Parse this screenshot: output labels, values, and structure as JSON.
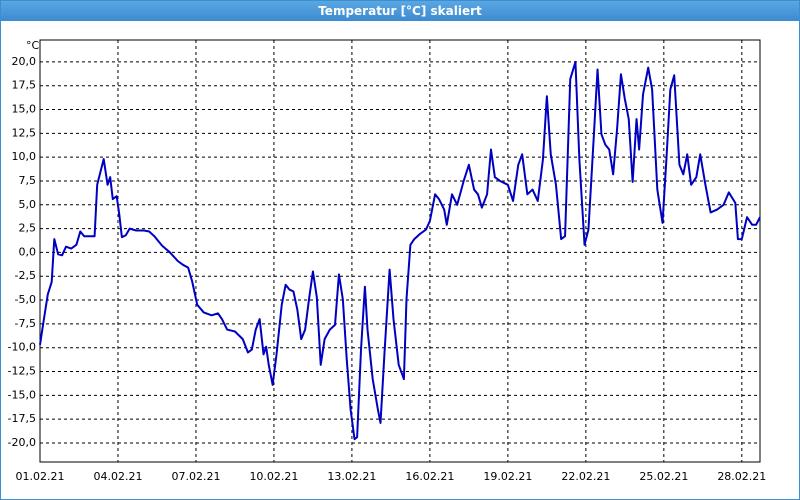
{
  "chart_data": {
    "type": "line",
    "title": "Temperatur [°C] skaliert",
    "y_label": "°C",
    "x": [
      0,
      0.15,
      0.3,
      0.45,
      0.55,
      0.7,
      0.85,
      1.0,
      1.2,
      1.4,
      1.55,
      1.7,
      2.1,
      2.2,
      2.45,
      2.6,
      2.7,
      2.8,
      2.95,
      3.05,
      3.15,
      3.3,
      3.45,
      3.7,
      4.0,
      4.2,
      4.4,
      4.7,
      5.0,
      5.3,
      5.5,
      5.7,
      5.85,
      6.05,
      6.3,
      6.6,
      6.85,
      7.0,
      7.2,
      7.5,
      7.8,
      8.0,
      8.15,
      8.3,
      8.45,
      8.6,
      8.7,
      8.8,
      8.95,
      9.1,
      9.3,
      9.45,
      9.6,
      9.75,
      9.9,
      10.05,
      10.2,
      10.35,
      10.5,
      10.65,
      10.8,
      10.95,
      11.15,
      11.35,
      11.5,
      11.65,
      11.8,
      11.95,
      12.1,
      12.2,
      12.35,
      12.5,
      12.6,
      12.8,
      13.0,
      13.1,
      13.25,
      13.45,
      13.6,
      13.8,
      14.0,
      14.1,
      14.25,
      14.4,
      14.6,
      14.85,
      15.0,
      15.2,
      15.35,
      15.55,
      15.65,
      15.85,
      16.05,
      16.3,
      16.5,
      16.7,
      16.85,
      17.0,
      17.2,
      17.35,
      17.5,
      17.7,
      18.0,
      18.2,
      18.4,
      18.55,
      18.75,
      18.95,
      19.15,
      19.35,
      19.5,
      19.65,
      19.85,
      20.05,
      20.2,
      20.4,
      20.6,
      20.75,
      20.95,
      21.1,
      21.3,
      21.45,
      21.6,
      21.75,
      21.9,
      22.05,
      22.2,
      22.35,
      22.5,
      22.65,
      22.8,
      22.95,
      23.05,
      23.2,
      23.4,
      23.55,
      23.75,
      23.95,
      24.1,
      24.25,
      24.4,
      24.6,
      24.75,
      24.9,
      25.05,
      25.25,
      25.4,
      25.6,
      25.8,
      26.05,
      26.3,
      26.5,
      26.75,
      26.85,
      27.0,
      27.2,
      27.4,
      27.55,
      27.7
    ],
    "series": [
      {
        "name": "Temperatur",
        "color": "#0000c0",
        "values": [
          -9.7,
          -7,
          -4.4,
          -3.1,
          1.4,
          -0.2,
          -0.3,
          0.6,
          0.4,
          0.8,
          2.2,
          1.7,
          1.7,
          7.1,
          9.8,
          7.1,
          7.9,
          5.6,
          5.9,
          4,
          1.6,
          1.8,
          2.5,
          2.3,
          2.3,
          2.2,
          1.7,
          0.7,
          0,
          -0.9,
          -1.3,
          -1.6,
          -3,
          -5.5,
          -6.3,
          -6.6,
          -6.4,
          -7,
          -8.1,
          -8.3,
          -9.1,
          -10.5,
          -10.2,
          -8.1,
          -7,
          -10.7,
          -9.9,
          -11.8,
          -13.9,
          -10.7,
          -5.5,
          -3.4,
          -3.9,
          -4.1,
          -6,
          -9.1,
          -8.1,
          -4.9,
          -2,
          -4.7,
          -11.8,
          -9.1,
          -8.1,
          -7.6,
          -2.3,
          -4.9,
          -11.2,
          -16.5,
          -19.6,
          -19.4,
          -10.2,
          -3.6,
          -8.1,
          -13.3,
          -16.5,
          -17.9,
          -10.7,
          -1.8,
          -7,
          -11.8,
          -13.3,
          -4.9,
          0.8,
          1.4,
          1.9,
          2.4,
          3.3,
          6.1,
          5.6,
          4.5,
          2.9,
          6.1,
          5,
          7.5,
          9.2,
          6.6,
          6.1,
          4.7,
          6.1,
          10.8,
          7.9,
          7.5,
          7.1,
          5.4,
          9.2,
          10.3,
          6.1,
          6.6,
          5.4,
          9.8,
          16.4,
          10.3,
          7.1,
          1.4,
          1.7,
          18.2,
          20,
          9.8,
          0.8,
          2.4,
          11.9,
          19.2,
          12.4,
          11.3,
          10.8,
          8.2,
          12.9,
          18.7,
          16.1,
          14,
          7.4,
          14,
          10.8,
          16.6,
          19.4,
          17.1,
          6.6,
          3.1,
          9.8,
          17.1,
          18.6,
          9.2,
          8.2,
          10.3,
          7.1,
          7.9,
          10.3,
          7.1,
          4.2,
          4.5,
          5,
          6.3,
          5.2,
          1.4,
          1.4,
          3.7,
          2.9,
          2.9,
          3.7
        ]
      }
    ],
    "xlim": [
      0,
      27.7
    ],
    "xticks": [
      {
        "value": 0,
        "label": "01.02.21"
      },
      {
        "value": 3,
        "label": "04.02.21"
      },
      {
        "value": 6,
        "label": "07.02.21"
      },
      {
        "value": 9,
        "label": "10.02.21"
      },
      {
        "value": 12,
        "label": "13.02.21"
      },
      {
        "value": 15,
        "label": "16.02.21"
      },
      {
        "value": 18,
        "label": "19.02.21"
      },
      {
        "value": 21,
        "label": "22.02.21"
      },
      {
        "value": 24,
        "label": "25.02.21"
      },
      {
        "value": 27,
        "label": "28.02.21"
      }
    ],
    "ylim": [
      -22,
      22.3
    ],
    "yticks": [
      {
        "value": 20,
        "label": "20,0"
      },
      {
        "value": 17.5,
        "label": "17,5"
      },
      {
        "value": 15,
        "label": "15,0"
      },
      {
        "value": 12.5,
        "label": "12,5"
      },
      {
        "value": 10,
        "label": "10,0"
      },
      {
        "value": 7.5,
        "label": "7,5"
      },
      {
        "value": 5,
        "label": "5,0"
      },
      {
        "value": 2.5,
        "label": "2,5"
      },
      {
        "value": 0,
        "label": "0,0"
      },
      {
        "value": -2.5,
        "label": "-2,5"
      },
      {
        "value": -5,
        "label": "-5,0"
      },
      {
        "value": -7.5,
        "label": "-7,5"
      },
      {
        "value": -10,
        "label": "-10,0"
      },
      {
        "value": -12.5,
        "label": "-12,5"
      },
      {
        "value": -15,
        "label": "-15,0"
      },
      {
        "value": -17.5,
        "label": "-17,5"
      },
      {
        "value": -20,
        "label": "-20,0"
      }
    ],
    "grid": true
  }
}
